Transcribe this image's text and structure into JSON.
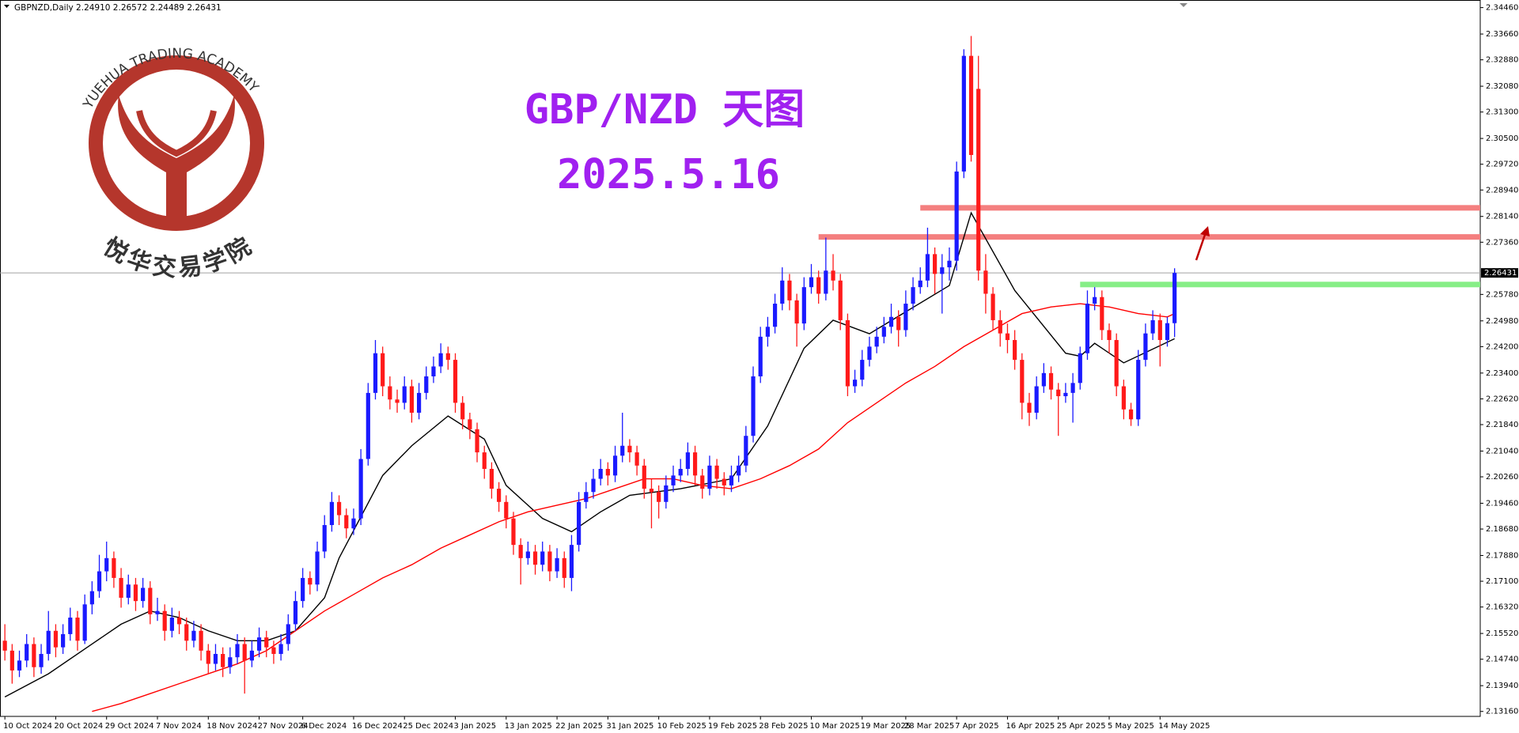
{
  "header": "GBPNZD,Daily  2.24910 2.26572 2.24489 2.26431",
  "logo": {
    "name_en": "YUEHUA TRADING ACADEMY",
    "name_cn": "悦华交易学院"
  },
  "chart_data": {
    "type": "candlestick",
    "title": "GBP/NZD 天图",
    "subtitle": "2025.5.16",
    "up_color": "#1a1aff",
    "down_color": "#ff1a1a",
    "xlim": [
      -0.67,
      203.07
    ],
    "ylim": [
      2.1301,
      2.3469
    ],
    "current_price": 2.26431,
    "yticks": [
      {
        "value": 2.3446,
        "label": "2.34460"
      },
      {
        "value": 2.3366,
        "label": "2.33660"
      },
      {
        "value": 2.3288,
        "label": "2.32880"
      },
      {
        "value": 2.3208,
        "label": "2.32080"
      },
      {
        "value": 2.313,
        "label": "2.31300"
      },
      {
        "value": 2.305,
        "label": "2.30500"
      },
      {
        "value": 2.2972,
        "label": "2.29720"
      },
      {
        "value": 2.2894,
        "label": "2.28940"
      },
      {
        "value": 2.2814,
        "label": "2.28140"
      },
      {
        "value": 2.2736,
        "label": "2.27360"
      },
      {
        "value": 2.2578,
        "label": "2.25780"
      },
      {
        "value": 2.2498,
        "label": "2.24980"
      },
      {
        "value": 2.242,
        "label": "2.24200"
      },
      {
        "value": 2.234,
        "label": "2.23400"
      },
      {
        "value": 2.2262,
        "label": "2.22620"
      },
      {
        "value": 2.2184,
        "label": "2.21840"
      },
      {
        "value": 2.2104,
        "label": "2.21040"
      },
      {
        "value": 2.2026,
        "label": "2.20260"
      },
      {
        "value": 2.1946,
        "label": "2.19460"
      },
      {
        "value": 2.1868,
        "label": "2.18680"
      },
      {
        "value": 2.1788,
        "label": "2.17880"
      },
      {
        "value": 2.171,
        "label": "2.17100"
      },
      {
        "value": 2.1632,
        "label": "2.16320"
      },
      {
        "value": 2.1552,
        "label": "2.15520"
      },
      {
        "value": 2.1474,
        "label": "2.14740"
      },
      {
        "value": 2.1394,
        "label": "2.13940"
      },
      {
        "value": 2.1316,
        "label": "2.13160"
      }
    ],
    "xticks": [
      {
        "value": 0,
        "label": "10 Oct 2024"
      },
      {
        "value": 7,
        "label": "20 Oct 2024"
      },
      {
        "value": 14,
        "label": "29 Oct 2024"
      },
      {
        "value": 21,
        "label": "7 Nov 2024"
      },
      {
        "value": 28,
        "label": "18 Nov 2024"
      },
      {
        "value": 35,
        "label": "27 Nov 2024"
      },
      {
        "value": 41,
        "label": "6 Dec 2024"
      },
      {
        "value": 48,
        "label": "16 Dec 2024"
      },
      {
        "value": 55,
        "label": "25 Dec 2024"
      },
      {
        "value": 62,
        "label": "3 Jan 2025"
      },
      {
        "value": 69,
        "label": "13 Jan 2025"
      },
      {
        "value": 76,
        "label": "22 Jan 2025"
      },
      {
        "value": 83,
        "label": "31 Jan 2025"
      },
      {
        "value": 90,
        "label": "10 Feb 2025"
      },
      {
        "value": 97,
        "label": "19 Feb 2025"
      },
      {
        "value": 104,
        "label": "28 Feb 2025"
      },
      {
        "value": 111,
        "label": "10 Mar 2025"
      },
      {
        "value": 118,
        "label": "19 Mar 2025"
      },
      {
        "value": 124,
        "label": "28 Mar 2025"
      },
      {
        "value": 131,
        "label": "7 Apr 2025"
      },
      {
        "value": 138,
        "label": "16 Apr 2025"
      },
      {
        "value": 145,
        "label": "25 Apr 2025"
      },
      {
        "value": 152,
        "label": "5 May 2025"
      },
      {
        "value": 159,
        "label": "14 May 2025"
      }
    ],
    "levels": [
      {
        "value": 2.284,
        "x": 126,
        "color": "#f47f7f"
      },
      {
        "value": 2.2752,
        "x": 112,
        "color": "#f47f7f"
      },
      {
        "value": 2.2608,
        "x": 148,
        "color": "#86ee86"
      }
    ],
    "series": [
      {
        "color": "#000000",
        "x": [
          0,
          6,
          12,
          16,
          20,
          24,
          28,
          32,
          36,
          40,
          44,
          46,
          52,
          56,
          61,
          66,
          69,
          74,
          78,
          82,
          86,
          93,
          100,
          105,
          110,
          114,
          119,
          130,
          133,
          139,
          146,
          148,
          150,
          154,
          161
        ],
        "values": [
          2.136,
          2.143,
          2.152,
          2.158,
          2.162,
          2.16,
          2.156,
          2.153,
          2.153,
          2.156,
          2.166,
          2.178,
          2.203,
          2.212,
          2.221,
          2.214,
          2.2,
          2.19,
          2.186,
          2.192,
          2.197,
          2.199,
          2.202,
          2.218,
          2.2415,
          2.25,
          2.2459,
          2.2605,
          2.2825,
          2.259,
          2.24,
          2.2391,
          2.243,
          2.2371,
          2.2444
        ]
      },
      {
        "color": "#ff0000",
        "x": [
          12,
          16,
          20,
          24,
          28,
          32,
          36,
          40,
          44,
          48,
          52,
          56,
          60,
          64,
          68,
          72,
          76,
          80,
          84,
          88,
          92,
          96,
          100,
          104,
          108,
          112,
          116,
          120,
          124,
          128,
          132,
          136,
          140,
          144,
          148,
          152,
          156,
          160,
          161
        ],
        "values": [
          2.1316,
          2.134,
          2.137,
          2.14,
          2.143,
          2.146,
          2.15,
          2.156,
          2.162,
          2.167,
          2.172,
          2.176,
          2.181,
          2.185,
          2.189,
          2.192,
          2.194,
          2.196,
          2.199,
          2.202,
          2.202,
          2.2,
          2.199,
          2.202,
          2.206,
          2.211,
          2.219,
          2.225,
          2.231,
          2.236,
          2.242,
          2.247,
          2.252,
          2.254,
          2.255,
          2.254,
          2.252,
          2.251,
          2.252
        ]
      }
    ],
    "candles": [
      [
        2.153,
        2.158,
        2.147,
        2.15
      ],
      [
        2.15,
        2.152,
        2.14,
        2.144
      ],
      [
        2.144,
        2.15,
        2.142,
        2.147
      ],
      [
        2.147,
        2.155,
        2.145,
        2.152
      ],
      [
        2.152,
        2.154,
        2.142,
        2.145
      ],
      [
        2.145,
        2.152,
        2.143,
        2.149
      ],
      [
        2.149,
        2.162,
        2.147,
        2.156
      ],
      [
        2.156,
        2.158,
        2.148,
        2.151
      ],
      [
        2.151,
        2.158,
        2.149,
        2.155
      ],
      [
        2.155,
        2.163,
        2.153,
        2.16
      ],
      [
        2.16,
        2.162,
        2.15,
        2.153
      ],
      [
        2.153,
        2.167,
        2.152,
        2.164
      ],
      [
        2.164,
        2.171,
        2.161,
        2.168
      ],
      [
        2.168,
        2.179,
        2.166,
        2.174
      ],
      [
        2.174,
        2.183,
        2.171,
        2.178
      ],
      [
        2.178,
        2.18,
        2.169,
        2.172
      ],
      [
        2.172,
        2.175,
        2.163,
        2.166
      ],
      [
        2.166,
        2.173,
        2.164,
        2.17
      ],
      [
        2.17,
        2.172,
        2.162,
        2.165
      ],
      [
        2.165,
        2.172,
        2.163,
        2.169
      ],
      [
        2.169,
        2.171,
        2.158,
        2.161
      ],
      [
        2.161,
        2.166,
        2.159,
        2.162
      ],
      [
        2.162,
        2.164,
        2.153,
        2.156
      ],
      [
        2.156,
        2.163,
        2.154,
        2.16
      ],
      [
        2.16,
        2.162,
        2.155,
        2.158
      ],
      [
        2.158,
        2.16,
        2.15,
        2.153
      ],
      [
        2.153,
        2.159,
        2.151,
        2.156
      ],
      [
        2.156,
        2.158,
        2.147,
        2.15
      ],
      [
        2.15,
        2.152,
        2.143,
        2.146
      ],
      [
        2.146,
        2.152,
        2.144,
        2.149
      ],
      [
        2.149,
        2.151,
        2.142,
        2.145
      ],
      [
        2.145,
        2.151,
        2.143,
        2.148
      ],
      [
        2.148,
        2.155,
        2.146,
        2.152
      ],
      [
        2.152,
        2.154,
        2.137,
        2.147
      ],
      [
        2.147,
        2.153,
        2.145,
        2.15
      ],
      [
        2.15,
        2.157,
        2.148,
        2.154
      ],
      [
        2.154,
        2.156,
        2.148,
        2.151
      ],
      [
        2.151,
        2.153,
        2.146,
        2.149
      ],
      [
        2.149,
        2.155,
        2.147,
        2.152
      ],
      [
        2.152,
        2.161,
        2.15,
        2.158
      ],
      [
        2.158,
        2.168,
        2.156,
        2.165
      ],
      [
        2.165,
        2.175,
        2.163,
        2.172
      ],
      [
        2.172,
        2.174,
        2.167,
        2.17
      ],
      [
        2.17,
        2.183,
        2.168,
        2.18
      ],
      [
        2.18,
        2.191,
        2.178,
        2.188
      ],
      [
        2.188,
        2.198,
        2.186,
        2.195
      ],
      [
        2.195,
        2.197,
        2.188,
        2.191
      ],
      [
        2.191,
        2.193,
        2.184,
        2.187
      ],
      [
        2.187,
        2.193,
        2.185,
        2.19
      ],
      [
        2.19,
        2.211,
        2.188,
        2.208
      ],
      [
        2.208,
        2.231,
        2.206,
        2.228
      ],
      [
        2.228,
        2.244,
        2.226,
        2.24
      ],
      [
        2.24,
        2.242,
        2.227,
        2.23
      ],
      [
        2.23,
        2.233,
        2.223,
        2.226
      ],
      [
        2.226,
        2.229,
        2.222,
        2.225
      ],
      [
        2.225,
        2.233,
        2.223,
        2.23
      ],
      [
        2.23,
        2.232,
        2.219,
        2.222
      ],
      [
        2.222,
        2.231,
        2.22,
        2.228
      ],
      [
        2.228,
        2.236,
        2.226,
        2.233
      ],
      [
        2.233,
        2.239,
        2.231,
        2.236
      ],
      [
        2.236,
        2.243,
        2.234,
        2.24
      ],
      [
        2.24,
        2.242,
        2.235,
        2.238
      ],
      [
        2.238,
        2.24,
        2.222,
        2.225
      ],
      [
        2.225,
        2.227,
        2.217,
        2.22
      ],
      [
        2.22,
        2.222,
        2.214,
        2.217
      ],
      [
        2.217,
        2.219,
        2.207,
        2.21
      ],
      [
        2.21,
        2.212,
        2.202,
        2.205
      ],
      [
        2.205,
        2.207,
        2.196,
        2.199
      ],
      [
        2.199,
        2.201,
        2.192,
        2.195
      ],
      [
        2.195,
        2.197,
        2.187,
        2.19
      ],
      [
        2.19,
        2.192,
        2.179,
        2.182
      ],
      [
        2.182,
        2.184,
        2.17,
        2.178
      ],
      [
        2.178,
        2.183,
        2.176,
        2.18
      ],
      [
        2.18,
        2.182,
        2.173,
        2.176
      ],
      [
        2.176,
        2.183,
        2.174,
        2.18
      ],
      [
        2.18,
        2.182,
        2.171,
        2.174
      ],
      [
        2.174,
        2.181,
        2.172,
        2.178
      ],
      [
        2.178,
        2.18,
        2.169,
        2.172
      ],
      [
        2.172,
        2.185,
        2.168,
        2.182
      ],
      [
        2.182,
        2.198,
        2.18,
        2.195
      ],
      [
        2.195,
        2.201,
        2.193,
        2.198
      ],
      [
        2.198,
        2.205,
        2.196,
        2.202
      ],
      [
        2.202,
        2.208,
        2.2,
        2.205
      ],
      [
        2.205,
        2.207,
        2.2,
        2.203
      ],
      [
        2.203,
        2.212,
        2.201,
        2.209
      ],
      [
        2.209,
        2.222,
        2.207,
        2.212
      ],
      [
        2.212,
        2.214,
        2.207,
        2.21
      ],
      [
        2.21,
        2.212,
        2.203,
        2.206
      ],
      [
        2.206,
        2.208,
        2.196,
        2.199
      ],
      [
        2.199,
        2.202,
        2.187,
        2.198
      ],
      [
        2.198,
        2.2,
        2.19,
        2.195
      ],
      [
        2.195,
        2.203,
        2.193,
        2.2
      ],
      [
        2.2,
        2.206,
        2.198,
        2.203
      ],
      [
        2.203,
        2.208,
        2.201,
        2.205
      ],
      [
        2.205,
        2.213,
        2.203,
        2.21
      ],
      [
        2.21,
        2.212,
        2.2,
        2.203
      ],
      [
        2.203,
        2.205,
        2.196,
        2.199
      ],
      [
        2.199,
        2.209,
        2.197,
        2.206
      ],
      [
        2.206,
        2.208,
        2.199,
        2.202
      ],
      [
        2.202,
        2.204,
        2.197,
        2.2
      ],
      [
        2.2,
        2.206,
        2.198,
        2.203
      ],
      [
        2.203,
        2.209,
        2.201,
        2.206
      ],
      [
        2.206,
        2.218,
        2.204,
        2.215
      ],
      [
        2.215,
        2.236,
        2.213,
        2.233
      ],
      [
        2.233,
        2.248,
        2.231,
        2.245
      ],
      [
        2.245,
        2.251,
        2.242,
        2.248
      ],
      [
        2.248,
        2.258,
        2.246,
        2.255
      ],
      [
        2.255,
        2.266,
        2.253,
        2.262
      ],
      [
        2.262,
        2.264,
        2.253,
        2.256
      ],
      [
        2.256,
        2.258,
        2.242,
        2.249
      ],
      [
        2.249,
        2.263,
        2.247,
        2.26
      ],
      [
        2.26,
        2.267,
        2.258,
        2.263
      ],
      [
        2.263,
        2.265,
        2.255,
        2.258
      ],
      [
        2.258,
        2.275,
        2.256,
        2.265
      ],
      [
        2.265,
        2.27,
        2.259,
        2.262
      ],
      [
        2.262,
        2.264,
        2.247,
        2.25
      ],
      [
        2.25,
        2.252,
        2.227,
        2.23
      ],
      [
        2.23,
        2.235,
        2.228,
        2.232
      ],
      [
        2.232,
        2.241,
        2.23,
        2.238
      ],
      [
        2.238,
        2.245,
        2.236,
        2.242
      ],
      [
        2.242,
        2.248,
        2.24,
        2.245
      ],
      [
        2.245,
        2.251,
        2.243,
        2.248
      ],
      [
        2.248,
        2.255,
        2.246,
        2.251
      ],
      [
        2.251,
        2.253,
        2.242,
        2.247
      ],
      [
        2.247,
        2.259,
        2.245,
        2.255
      ],
      [
        2.255,
        2.263,
        2.253,
        2.26
      ],
      [
        2.26,
        2.266,
        2.258,
        2.262
      ],
      [
        2.262,
        2.278,
        2.26,
        2.27
      ],
      [
        2.27,
        2.272,
        2.258,
        2.264
      ],
      [
        2.264,
        2.27,
        2.252,
        2.266
      ],
      [
        2.266,
        2.272,
        2.262,
        2.268
      ],
      [
        2.268,
        2.298,
        2.265,
        2.295
      ],
      [
        2.295,
        2.332,
        2.293,
        2.33
      ],
      [
        2.33,
        2.336,
        2.298,
        2.3
      ],
      [
        2.32,
        2.33,
        2.262,
        2.265
      ],
      [
        2.265,
        2.27,
        2.252,
        2.258
      ],
      [
        2.258,
        2.26,
        2.247,
        2.25
      ],
      [
        2.25,
        2.253,
        2.242,
        2.246
      ],
      [
        2.246,
        2.249,
        2.24,
        2.244
      ],
      [
        2.244,
        2.247,
        2.235,
        2.238
      ],
      [
        2.238,
        2.24,
        2.22,
        2.225
      ],
      [
        2.225,
        2.228,
        2.218,
        2.222
      ],
      [
        2.222,
        2.233,
        2.22,
        2.23
      ],
      [
        2.23,
        2.237,
        2.228,
        2.234
      ],
      [
        2.234,
        2.236,
        2.226,
        2.229
      ],
      [
        2.229,
        2.231,
        2.215,
        2.227
      ],
      [
        2.227,
        2.231,
        2.225,
        2.228
      ],
      [
        2.228,
        2.234,
        2.219,
        2.231
      ],
      [
        2.231,
        2.242,
        2.229,
        2.24
      ],
      [
        2.24,
        2.259,
        2.238,
        2.255
      ],
      [
        2.255,
        2.26,
        2.253,
        2.257
      ],
      [
        2.257,
        2.259,
        2.244,
        2.247
      ],
      [
        2.247,
        2.249,
        2.24,
        2.244
      ],
      [
        2.244,
        2.246,
        2.227,
        2.23
      ],
      [
        2.23,
        2.232,
        2.22,
        2.223
      ],
      [
        2.223,
        2.225,
        2.218,
        2.22
      ],
      [
        2.22,
        2.241,
        2.218,
        2.238
      ],
      [
        2.238,
        2.249,
        2.236,
        2.246
      ],
      [
        2.246,
        2.253,
        2.244,
        2.25
      ],
      [
        2.25,
        2.252,
        2.236,
        2.244
      ],
      [
        2.244,
        2.251,
        2.242,
        2.2491
      ],
      [
        2.2491,
        2.26572,
        2.24489,
        2.26431
      ]
    ]
  }
}
